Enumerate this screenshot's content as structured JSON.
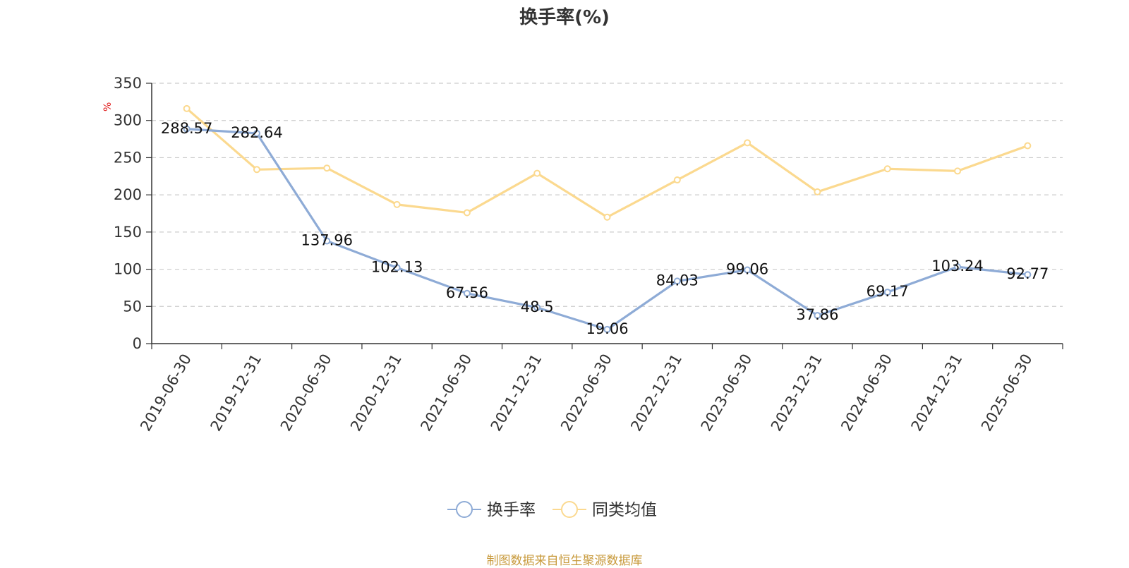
{
  "chart_data": {
    "type": "line",
    "title": "换手率(%)",
    "y_unit": "%",
    "x": [
      "2019-06-30",
      "2019-12-31",
      "2020-06-30",
      "2020-12-31",
      "2021-06-30",
      "2021-12-31",
      "2022-06-30",
      "2022-12-31",
      "2023-06-30",
      "2023-12-31",
      "2024-06-30",
      "2024-12-31",
      "2025-06-30"
    ],
    "series": [
      {
        "name": "换手率",
        "color": "#8eabd6",
        "values": [
          288.57,
          282.64,
          137.96,
          102.13,
          67.56,
          48.5,
          19.06,
          84.03,
          99.06,
          37.86,
          69.17,
          103.24,
          92.77
        ],
        "labels": [
          "288.57",
          "282.64",
          "137.96",
          "102.13",
          "67.56",
          "48.5",
          "19.06",
          "84.03",
          "99.06",
          "37.86",
          "69.17",
          "103.24",
          "92.77"
        ]
      },
      {
        "name": "同类均值",
        "color": "#fbd98f",
        "values": [
          316,
          234,
          236,
          187,
          176,
          229,
          170,
          220,
          270,
          204,
          235,
          232,
          266
        ]
      }
    ],
    "ylim": [
      0,
      350
    ],
    "yticks": [
      0,
      50,
      100,
      150,
      200,
      250,
      300,
      350
    ],
    "grid": true,
    "legend_position": "bottom-center",
    "unit_color": "#e02020"
  },
  "source_text": "制图数据来自恒生聚源数据库"
}
